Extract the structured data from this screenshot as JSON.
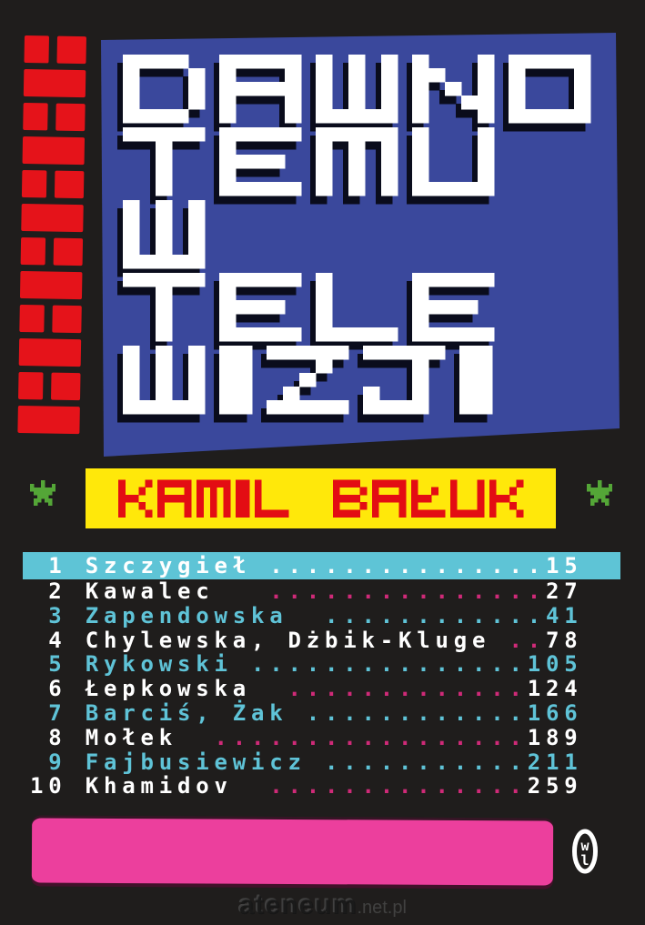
{
  "title": {
    "lines": [
      "DAWNO",
      "TEMU",
      "W",
      "TELE",
      "WIZJI"
    ],
    "full": "DAWNO TEMU W TELEWIZJI"
  },
  "author": "KAMIL BAŁUK",
  "toc": {
    "rows": [
      {
        "num": " 1",
        "name": "Szczygieł",
        "gap": " ",
        "dots": "...............",
        "page": "15",
        "style": "highlight"
      },
      {
        "num": " 2",
        "name": "Kawalec",
        "gap": "   ",
        "dots": "...............",
        "page": "27",
        "style": "plain"
      },
      {
        "num": " 3",
        "name": "Zapendowska",
        "gap": "  ",
        "dots": "............",
        "page": "41",
        "style": "cyan"
      },
      {
        "num": " 4",
        "name": "Chylewska, Dżbik-Kluge",
        "gap": " ",
        "dots": "..",
        "page": "78",
        "style": "plain"
      },
      {
        "num": " 5",
        "name": "Rykowski",
        "gap": " ",
        "dots": "...............",
        "page": "105",
        "style": "cyan"
      },
      {
        "num": " 6",
        "name": "Łepkowska",
        "gap": "  ",
        "dots": ".............",
        "page": "124",
        "style": "plain"
      },
      {
        "num": " 7",
        "name": "Barciś, Żak",
        "gap": " ",
        "dots": "............",
        "page": "166",
        "style": "cyan"
      },
      {
        "num": " 8",
        "name": "Mołek",
        "gap": "  ",
        "dots": ".................",
        "page": "189",
        "style": "plain"
      },
      {
        "num": " 9",
        "name": "Fajbusiewicz",
        "gap": " ",
        "dots": "...........",
        "page": "211",
        "style": "cyan"
      },
      {
        "num": "10",
        "name": "Khamidov",
        "gap": "  ",
        "dots": "..............",
        "page": "259",
        "style": "plain"
      }
    ]
  },
  "publisher_logo": {
    "top": "w",
    "bottom": "l"
  },
  "watermark": {
    "name": "ateneum",
    "tld": ".net.pl"
  },
  "palette": {
    "background": "#1f1d1c",
    "panel_blue": "#3a489c",
    "brick_red": "#e5131a",
    "banner_yellow": "#ffe80a",
    "author_red": "#e30d13",
    "star_green": "#54a637",
    "highlight_cyan": "#5ec4d6",
    "text_cyan": "#5fc3d7",
    "dot_pink": "#cf2a78",
    "bottom_pink": "#ec3f9d",
    "title_white": "#ffffff",
    "title_shadow": "#0a0c1c"
  }
}
